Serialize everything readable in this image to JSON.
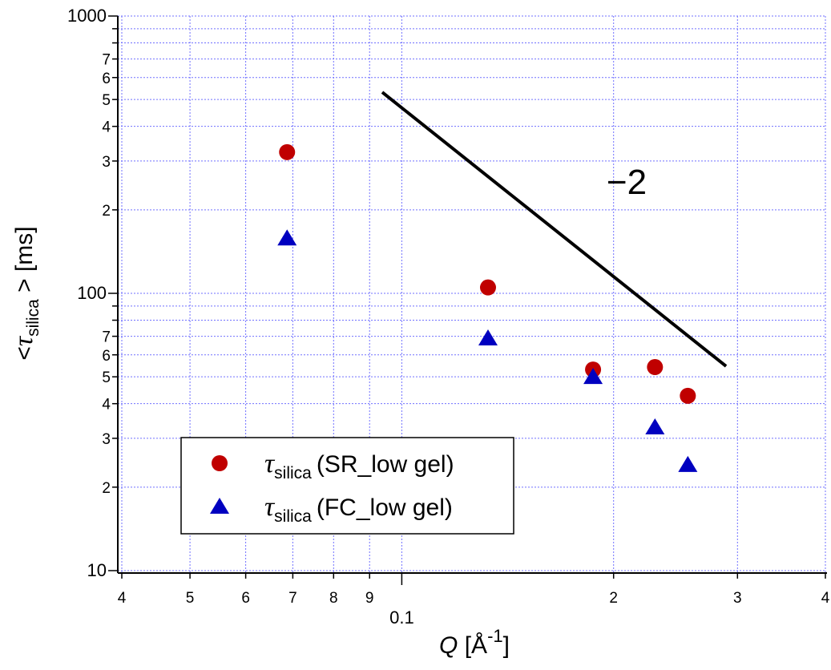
{
  "chart_data": {
    "type": "scatter",
    "x_label": {
      "name": "Q",
      "open": " [Å",
      "sup": "-1",
      "close": "]"
    },
    "y_label": {
      "open": "<",
      "symbol": "τ",
      "sub": "silica",
      "close": " > [ms]"
    },
    "xlim": [
      0.04,
      0.4
    ],
    "ylim": [
      10,
      1000
    ],
    "xscale": "log",
    "yscale": "log",
    "grid": true,
    "xticks": [
      {
        "value": 0.04,
        "label": "4"
      },
      {
        "value": 0.05,
        "label": "5"
      },
      {
        "value": 0.06,
        "label": "6"
      },
      {
        "value": 0.07,
        "label": "7"
      },
      {
        "value": 0.08,
        "label": "8"
      },
      {
        "value": 0.09,
        "label": "9"
      },
      0.1,
      {
        "value": 0.2,
        "label": "2"
      },
      {
        "value": 0.3,
        "label": "3"
      },
      {
        "value": 0.4,
        "label": "4"
      }
    ],
    "yticks": [
      10,
      {
        "value": 20,
        "label": "2"
      },
      {
        "value": 30,
        "label": "3"
      },
      {
        "value": 40,
        "label": "4"
      },
      {
        "value": 50,
        "label": "5"
      },
      {
        "value": 60,
        "label": "6"
      },
      {
        "value": 70,
        "label": "7"
      },
      100,
      {
        "value": 200,
        "label": "2"
      },
      {
        "value": 300,
        "label": "3"
      },
      {
        "value": 400,
        "label": "4"
      },
      {
        "value": 500,
        "label": "5"
      },
      {
        "value": 600,
        "label": "6"
      },
      {
        "value": 700,
        "label": "7"
      },
      1000
    ],
    "yticks_minor": [
      80,
      90,
      800,
      900
    ],
    "legend_symbol": "τ",
    "legend_symbol_sub": "silica",
    "legend_position": "lower left",
    "series": [
      {
        "name": "(SR_low gel)",
        "marker": "circle",
        "color": "#c00000",
        "x": [
          0.0687,
          0.1326,
          0.187,
          0.229,
          0.255
        ],
        "values": [
          323,
          105,
          53.1,
          54.2,
          42.7
        ]
      },
      {
        "name": "(FC_low gel)",
        "marker": "triangle",
        "color": "#0000c0",
        "x": [
          0.0687,
          0.1326,
          0.187,
          0.229,
          0.255
        ],
        "values": [
          158,
          68.9,
          50,
          32.9,
          24.1
        ]
      }
    ],
    "slope_line": {
      "label": "−2",
      "x": [
        0.0938,
        0.289
      ],
      "values": [
        531,
        54.6
      ]
    }
  }
}
